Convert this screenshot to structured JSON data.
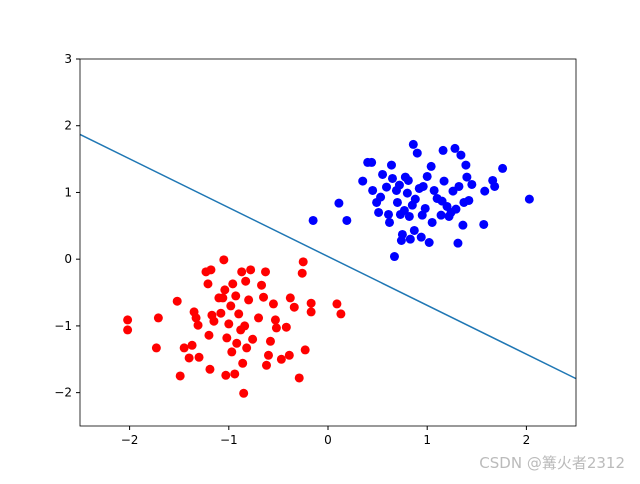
{
  "chart_data": {
    "type": "scatter",
    "xlim": [
      -2.5,
      2.5
    ],
    "ylim": [
      -2.5,
      3
    ],
    "xticks": [
      {
        "value": -2,
        "label": "−2"
      },
      {
        "value": -1,
        "label": "−1"
      },
      0,
      1,
      2
    ],
    "yticks": [
      {
        "value": -2,
        "label": "−2"
      },
      {
        "value": -1,
        "label": "−1"
      },
      0,
      1,
      2,
      3
    ],
    "grid": false,
    "series": [
      {
        "color": "#ff0000",
        "x": [
          -2.02,
          -2.02,
          -1.71,
          -1.73,
          -1.52,
          -1.49,
          -1.45,
          -1.4,
          -1.37,
          -1.35,
          -1.33,
          -1.3,
          -1.31,
          -1.23,
          -1.21,
          -1.2,
          -1.19,
          -1.17,
          -1.18,
          -1.15,
          -1.1,
          -1.08,
          -1.06,
          -1.05,
          -1.04,
          -1.03,
          -1.02,
          -1.0,
          -0.98,
          -0.97,
          -0.96,
          -0.94,
          -0.93,
          -0.92,
          -0.9,
          -0.88,
          -0.87,
          -0.86,
          -0.85,
          -0.84,
          -0.83,
          -0.82,
          -0.8,
          -0.78,
          -0.76,
          -0.7,
          -0.67,
          -0.65,
          -0.63,
          -0.62,
          -0.6,
          -0.58,
          -0.55,
          -0.53,
          -0.52,
          -0.47,
          -0.42,
          -0.39,
          -0.38,
          -0.34,
          -0.29,
          -0.26,
          -0.25,
          -0.23,
          -0.17,
          -0.17,
          0.09,
          0.13
        ],
        "values": [
          -0.91,
          -1.06,
          -0.88,
          -1.33,
          -0.63,
          -1.75,
          -1.33,
          -1.48,
          -1.29,
          -0.79,
          -0.88,
          -1.47,
          -0.99,
          -0.19,
          -0.37,
          -1.14,
          -1.65,
          -0.84,
          -0.16,
          -0.93,
          -0.58,
          -0.81,
          -0.58,
          -0.01,
          -0.46,
          -1.74,
          -1.18,
          -0.97,
          -0.7,
          -1.39,
          -0.37,
          -1.72,
          -0.55,
          -1.26,
          -0.82,
          -1.06,
          -0.19,
          -1.56,
          -2.01,
          -1.0,
          -0.33,
          -1.33,
          -0.61,
          -0.16,
          -1.2,
          -0.88,
          -0.39,
          -0.57,
          -0.19,
          -1.59,
          -1.44,
          -1.23,
          -0.67,
          -0.91,
          -1.03,
          -1.5,
          -1.02,
          -1.44,
          -0.58,
          -0.72,
          -1.78,
          -0.21,
          -0.04,
          -1.36,
          -0.66,
          -0.79,
          -0.67,
          -0.82
        ]
      },
      {
        "color": "#0000ff",
        "x": [
          -0.15,
          0.11,
          0.19,
          0.35,
          0.4,
          0.44,
          0.45,
          0.49,
          0.51,
          0.53,
          0.55,
          0.59,
          0.61,
          0.62,
          0.64,
          0.65,
          0.67,
          0.69,
          0.7,
          0.72,
          0.73,
          0.74,
          0.75,
          0.77,
          0.78,
          0.8,
          0.81,
          0.82,
          0.83,
          0.85,
          0.86,
          0.87,
          0.88,
          0.9,
          0.92,
          0.94,
          0.95,
          0.96,
          0.98,
          1.0,
          1.02,
          1.04,
          1.05,
          1.07,
          1.1,
          1.14,
          1.15,
          1.16,
          1.17,
          1.2,
          1.22,
          1.24,
          1.26,
          1.28,
          1.29,
          1.31,
          1.32,
          1.34,
          1.36,
          1.37,
          1.39,
          1.4,
          1.42,
          1.45,
          1.57,
          1.58,
          1.66,
          1.68,
          1.76,
          2.03
        ],
        "values": [
          0.58,
          0.84,
          0.58,
          1.17,
          1.45,
          1.45,
          1.03,
          0.85,
          0.7,
          0.93,
          1.27,
          1.08,
          0.67,
          0.55,
          1.41,
          1.21,
          0.04,
          1.03,
          0.85,
          1.11,
          0.67,
          0.28,
          0.37,
          0.73,
          1.23,
          0.99,
          1.18,
          0.64,
          0.3,
          0.81,
          1.72,
          0.43,
          0.9,
          1.59,
          1.06,
          0.33,
          0.66,
          1.09,
          0.76,
          1.24,
          0.25,
          1.39,
          0.55,
          1.03,
          0.91,
          0.66,
          0.87,
          1.63,
          1.17,
          0.79,
          0.64,
          0.7,
          1.02,
          1.66,
          0.75,
          0.24,
          1.09,
          1.56,
          0.51,
          0.85,
          1.41,
          1.23,
          0.88,
          1.12,
          0.52,
          1.02,
          1.18,
          1.09,
          1.36,
          0.9
        ]
      }
    ],
    "line": {
      "color": "#1f77b4",
      "x": [
        -2.5,
        2.5
      ],
      "values": [
        1.87,
        -1.79
      ]
    },
    "watermark": "CSDN @篝火者2312"
  }
}
